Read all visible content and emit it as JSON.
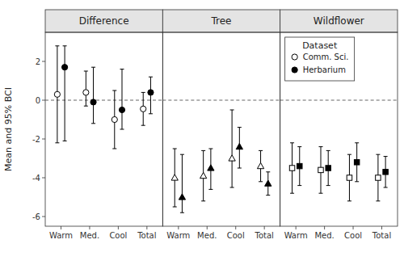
{
  "chart_data": [
    {
      "type": "errorbar",
      "title": "Difference",
      "ylabel": "Mean and 95% BCI",
      "categories": [
        "Warm",
        "Med.",
        "Cool",
        "Total"
      ],
      "ylim": [
        -6.5,
        3.5
      ],
      "yticks": [
        -6,
        -4,
        -2,
        0,
        2
      ],
      "reference_line": 0,
      "grid": false,
      "series": [
        {
          "name": "Comm. Sci.",
          "color": "black",
          "marker": "circle-open",
          "values": [
            0.3,
            0.4,
            -1.0,
            -0.45
          ],
          "lo": [
            -2.2,
            -0.3,
            -2.5,
            -1.3
          ],
          "hi": [
            2.8,
            1.5,
            0.5,
            0.4
          ]
        },
        {
          "name": "Herbarium",
          "color": "black",
          "marker": "circle-filled",
          "values": [
            1.7,
            -0.1,
            -0.5,
            0.4
          ],
          "lo": [
            -2.1,
            -1.2,
            -1.5,
            -0.7
          ],
          "hi": [
            2.8,
            1.7,
            1.6,
            1.2
          ]
        }
      ]
    },
    {
      "type": "errorbar",
      "title": "Tree",
      "categories": [
        "Warm",
        "Med.",
        "Cool",
        "Total"
      ],
      "ylim": [
        -6.5,
        3.5
      ],
      "reference_line": 0,
      "grid": false,
      "tick_labels": "x",
      "series": [
        {
          "name": "Comm. Sci.",
          "color": "black",
          "marker": "triangle-open",
          "values": [
            -4.0,
            -3.9,
            -3.0,
            -3.4
          ],
          "lo": [
            -5.5,
            -5.2,
            -4.5,
            -4.2
          ],
          "hi": [
            -2.5,
            -2.6,
            -0.5,
            -2.6
          ]
        },
        {
          "name": "Herbarium",
          "color": "black",
          "marker": "triangle-filled",
          "values": [
            -5.0,
            -3.5,
            -2.4,
            -4.3
          ],
          "lo": [
            -5.8,
            -4.6,
            -3.5,
            -4.9
          ],
          "hi": [
            -2.8,
            -2.5,
            -1.4,
            -3.7
          ]
        }
      ]
    },
    {
      "type": "errorbar",
      "title": "Wildflower",
      "categories": [
        "Warm",
        "Med.",
        "Cool",
        "Total"
      ],
      "ylim": [
        -6.5,
        3.5
      ],
      "reference_line": 0,
      "grid": false,
      "tick_labels": "x",
      "legend": "upper left",
      "legend_title": "Dataset",
      "series": [
        {
          "name": "Comm. Sci.",
          "color": "black",
          "marker": "square-open",
          "values": [
            -3.5,
            -3.6,
            -4.0,
            -4.0
          ],
          "lo": [
            -4.8,
            -4.8,
            -5.2,
            -5.2
          ],
          "hi": [
            -2.2,
            -2.4,
            -2.8,
            -2.8
          ]
        },
        {
          "name": "Herbarium",
          "color": "black",
          "marker": "square-filled",
          "values": [
            -3.4,
            -3.5,
            -3.2,
            -3.7
          ],
          "lo": [
            -4.4,
            -4.4,
            -4.2,
            -4.5
          ],
          "hi": [
            -2.4,
            -2.6,
            -2.2,
            -2.9
          ]
        }
      ]
    }
  ]
}
